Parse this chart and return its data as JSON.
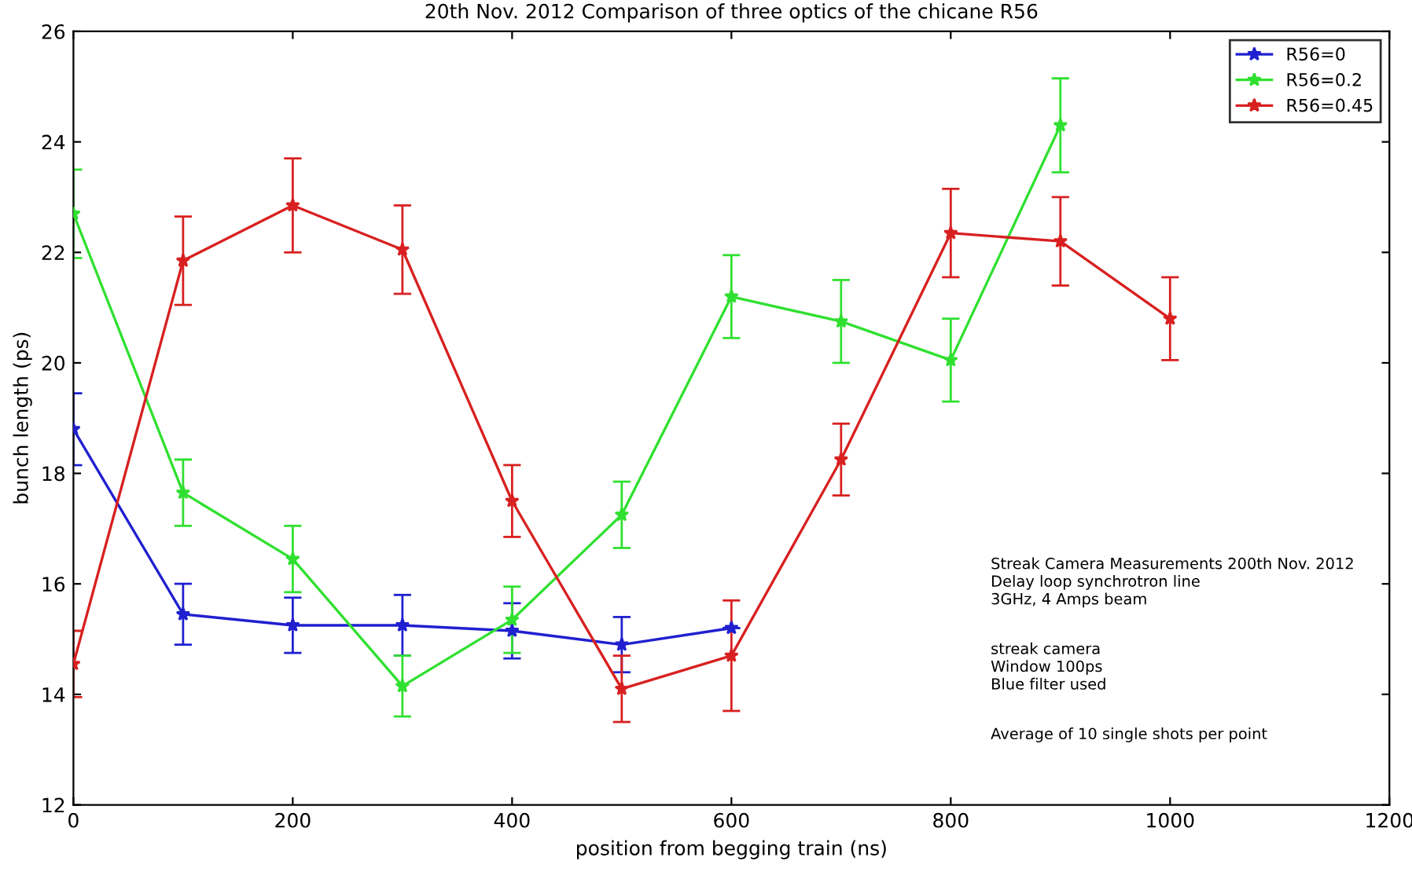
{
  "chart_data": {
    "type": "line",
    "title": "20th Nov. 2012 Comparison of three optics of the chicane R56",
    "xlabel": "position from begging train (ns)",
    "ylabel": "bunch length (ps)",
    "xlim": [
      0,
      1200
    ],
    "xticks": [
      0,
      200,
      400,
      600,
      800,
      1000,
      1200
    ],
    "ylim": [
      12,
      26
    ],
    "yticks": [
      12,
      14,
      16,
      18,
      20,
      22,
      24,
      26
    ],
    "grid": false,
    "legend": "top right",
    "marker": "star",
    "line_style": "solid",
    "series": [
      {
        "name": "R56=0",
        "color": "#2020d0",
        "x": [
          0,
          100,
          200,
          300,
          400,
          500,
          600
        ],
        "values": [
          18.8,
          15.45,
          15.25,
          15.25,
          15.15,
          14.9,
          15.2
        ],
        "errors": [
          0.65,
          0.55,
          0.5,
          0.55,
          0.5,
          0.5,
          null
        ]
      },
      {
        "name": "R56=0.2",
        "color": "#30e030",
        "x": [
          0,
          100,
          200,
          300,
          400,
          500,
          600,
          700,
          800,
          900
        ],
        "values": [
          22.7,
          17.65,
          16.45,
          14.15,
          15.35,
          17.25,
          21.2,
          20.75,
          20.05,
          24.3
        ],
        "errors": [
          0.8,
          0.6,
          0.6,
          0.55,
          0.6,
          0.6,
          0.75,
          0.75,
          0.75,
          0.85
        ]
      },
      {
        "name": "R56=0.45",
        "color": "#d82020",
        "x": [
          0,
          100,
          200,
          300,
          400,
          500,
          600,
          700,
          800,
          900,
          1000
        ],
        "values": [
          14.55,
          21.85,
          22.85,
          22.05,
          17.5,
          14.1,
          14.7,
          18.25,
          22.35,
          22.2,
          20.8
        ],
        "errors": [
          0.6,
          0.8,
          0.85,
          0.8,
          0.65,
          0.6,
          1.0,
          0.65,
          0.8,
          0.8,
          0.75
        ]
      }
    ],
    "annotations": [
      "Streak Camera Measurements 200th Nov. 2012\nDelay loop synchrotron line\n3GHz, 4 Amps beam",
      "streak camera\nWindow 100ps\nBlue filter used",
      "Average of 10 single shots per point"
    ]
  }
}
